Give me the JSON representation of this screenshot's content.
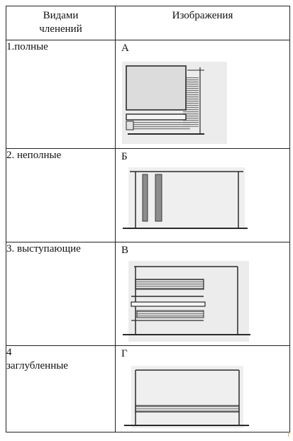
{
  "table": {
    "header": {
      "col1_line1": "Видами",
      "col1_line2": "членений",
      "col2": "Изображения"
    },
    "rows": [
      {
        "label": "1.полные",
        "letter": "А"
      },
      {
        "label": "2. неполные",
        "letter": "Б"
      },
      {
        "label": "3. выступающие",
        "letter": "В"
      },
      {
        "label_line1": "4",
        "label_line2": "заглубленные",
        "letter": "Г"
      }
    ]
  },
  "colors": {
    "paper_shade": "#ececec",
    "ink": "#2a2a2a",
    "hatch": "#8a8a8a"
  },
  "corner_mark": "г"
}
